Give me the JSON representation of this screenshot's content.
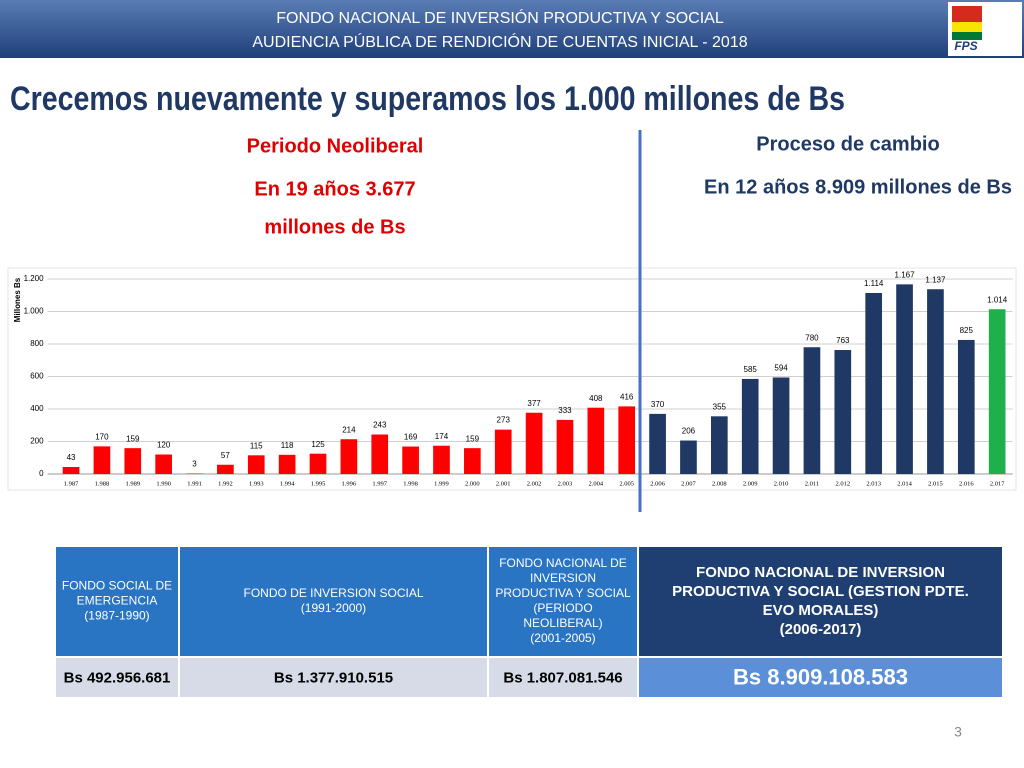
{
  "header": {
    "lines": [
      "FONDO NACIONAL DE INVERSIÓN PRODUCTIVA Y SOCIAL",
      "AUDIENCIA PÚBLICA DE RENDICIÓN DE CUENTAS INICIAL - 2018"
    ],
    "logo": "FPS"
  },
  "title": "Crecemos nuevamente y superamos los 1.000 millones de Bs",
  "left_section": {
    "heading": "Periodo Neoliberal",
    "lines": [
      "En 19 años 3.677",
      "millones de Bs"
    ]
  },
  "right_section": {
    "heading": "Proceso de cambio",
    "lines": [
      "En 12 años 8.909 millones de Bs"
    ]
  },
  "chart_data": {
    "type": "bar",
    "y_label": "Millones Bs",
    "categories": [
      "1.987",
      "1.988",
      "1.989",
      "1.990",
      "1.991",
      "1.992",
      "1.993",
      "1.994",
      "1.995",
      "1.996",
      "1.997",
      "1.998",
      "1.999",
      "2.000",
      "2.001",
      "2.002",
      "2.003",
      "2.004",
      "2.005",
      "2.006",
      "2.007",
      "2.008",
      "2.009",
      "2.010",
      "2.011",
      "2.012",
      "2.013",
      "2.014",
      "2.015",
      "2.016",
      "2.017"
    ],
    "values": [
      43,
      170,
      159,
      120,
      3,
      57,
      115,
      118,
      125,
      214,
      243,
      169,
      174,
      159,
      273,
      377,
      333,
      408,
      416,
      370,
      206,
      355,
      585,
      594,
      780,
      763,
      1114,
      1167,
      1137,
      825,
      1014
    ],
    "value_labels": [
      "43",
      "170",
      "159",
      "120",
      "3",
      "57",
      "115",
      "118",
      "125",
      "214",
      "243",
      "169",
      "174",
      "159",
      "273",
      "377",
      "333",
      "408",
      "416",
      "370",
      "206",
      "355",
      "585",
      "594",
      "780",
      "763",
      "1.114",
      "1.167",
      "1.137",
      "825",
      "1.014"
    ],
    "colors": [
      "#ff0000",
      "#ff0000",
      "#ff0000",
      "#ff0000",
      "#ff0000",
      "#ff0000",
      "#ff0000",
      "#ff0000",
      "#ff0000",
      "#ff0000",
      "#ff0000",
      "#ff0000",
      "#ff0000",
      "#ff0000",
      "#ff0000",
      "#ff0000",
      "#ff0000",
      "#ff0000",
      "#ff0000",
      "#1f3864",
      "#1f3864",
      "#1f3864",
      "#1f3864",
      "#1f3864",
      "#1f3864",
      "#1f3864",
      "#1f3864",
      "#1f3864",
      "#1f3864",
      "#1f3864",
      "#1fb04c"
    ],
    "ylim": [
      0,
      1200
    ],
    "yticks": [
      0,
      200,
      400,
      600,
      800,
      {
        "value": 1000,
        "label": "1.000"
      },
      {
        "value": 1200,
        "label": "1.200"
      }
    ],
    "grid": true
  },
  "table": {
    "header": [
      [
        "FONDO SOCIAL DE",
        "EMERGENCIA",
        "(1987-1990)"
      ],
      [
        "FONDO DE INVERSION SOCIAL",
        "(1991-2000)"
      ],
      [
        "FONDO NACIONAL DE",
        "INVERSION",
        "PRODUCTIVA Y SOCIAL",
        "(PERIODO",
        "NEOLIBERAL)",
        "(2001-2005)"
      ],
      [
        "FONDO NACIONAL DE INVERSION",
        "PRODUCTIVA Y SOCIAL (GESTION PDTE.",
        "EVO MORALES)",
        "(2006-2017)"
      ]
    ],
    "row": [
      "Bs 492.956.681",
      "Bs 1.377.910.515",
      "Bs 1.807.081.546",
      "Bs 8.909.108.583"
    ]
  },
  "page_number": "3"
}
